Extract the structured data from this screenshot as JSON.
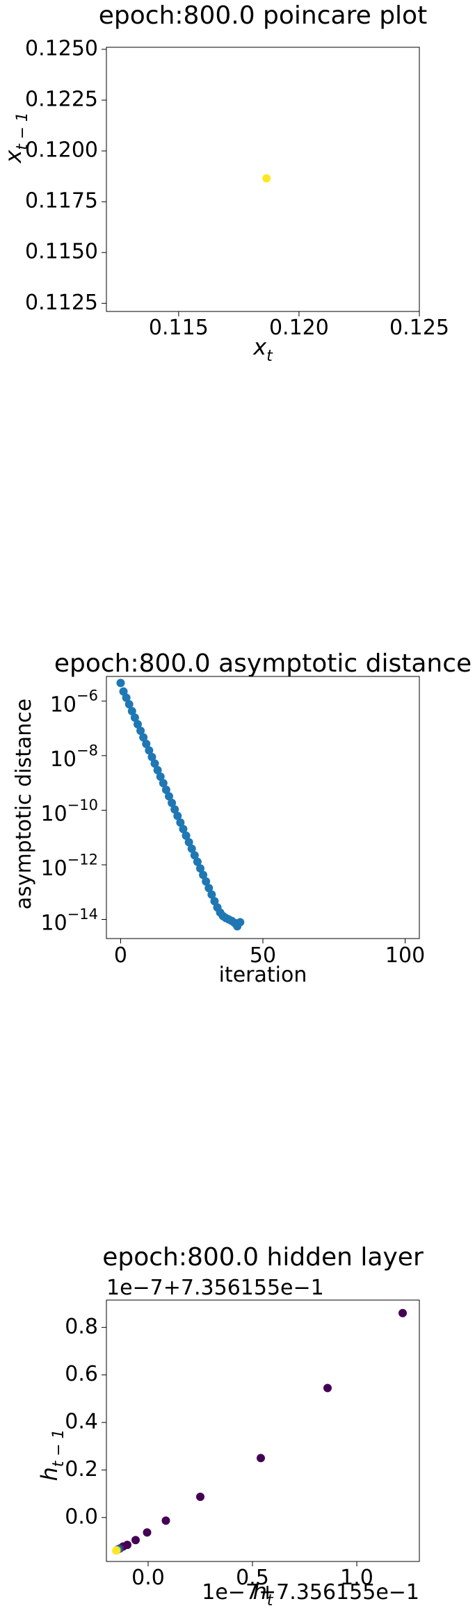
{
  "chart_data": [
    {
      "type": "scatter",
      "title": "epoch:800.0 poincare plot",
      "xlabel": {
        "main": "x",
        "sub": "t"
      },
      "ylabel": {
        "main": "x",
        "sub": "t − 1"
      },
      "xlim": [
        0.112,
        0.125
      ],
      "ylim": [
        0.1121,
        0.1251
      ],
      "x_ticks": [
        0.115,
        0.12,
        0.125
      ],
      "x_tick_labels": [
        "0.115",
        "0.120",
        "0.125"
      ],
      "y_ticks": [
        0.1125,
        0.115,
        0.1175,
        0.12,
        0.1225,
        0.125
      ],
      "y_tick_labels": [
        "0.1125",
        "0.1150",
        "0.1175",
        "0.1200",
        "0.1225",
        "0.1250"
      ],
      "points": [
        {
          "x": 0.11865,
          "y": 0.11865,
          "color": "#fde725"
        }
      ]
    },
    {
      "type": "scatter",
      "title": "epoch:800.0 asymptotic distance",
      "xlabel": "iteration",
      "ylabel": "asymptotic distance",
      "yscale": "log",
      "xlim": [
        -5,
        105
      ],
      "ylim_log10": [
        -14.7,
        -5.1
      ],
      "x_ticks": [
        0,
        50,
        100
      ],
      "x_tick_labels": [
        "0",
        "50",
        "100"
      ],
      "y_ticks_log10": [
        -6,
        -8,
        -10,
        -12,
        -14
      ],
      "y_tick_labels": [
        {
          "base": "10",
          "exp": "−6"
        },
        {
          "base": "10",
          "exp": "−8"
        },
        {
          "base": "10",
          "exp": "−10"
        },
        {
          "base": "10",
          "exp": "−12"
        },
        {
          "base": "10",
          "exp": "−14"
        }
      ],
      "color": "#1f77b4",
      "x": [
        0,
        1,
        2,
        3,
        4,
        5,
        6,
        7,
        8,
        9,
        10,
        11,
        12,
        13,
        14,
        15,
        16,
        17,
        18,
        19,
        20,
        21,
        22,
        23,
        24,
        25,
        26,
        27,
        28,
        29,
        30,
        31,
        32,
        33,
        34,
        35,
        36,
        37,
        38,
        39,
        40,
        41,
        42
      ],
      "log10_y": [
        -5.34,
        -5.65,
        -5.88,
        -6.12,
        -6.37,
        -6.61,
        -6.85,
        -7.09,
        -7.33,
        -7.57,
        -7.81,
        -8.05,
        -8.29,
        -8.53,
        -8.77,
        -9.01,
        -9.25,
        -9.49,
        -9.73,
        -9.97,
        -10.21,
        -10.45,
        -10.69,
        -10.93,
        -11.17,
        -11.41,
        -11.65,
        -11.89,
        -12.13,
        -12.37,
        -12.61,
        -12.85,
        -13.09,
        -13.33,
        -13.56,
        -13.75,
        -13.88,
        -13.95,
        -14.0,
        -14.05,
        -14.12,
        -14.25,
        -14.1
      ]
    },
    {
      "type": "scatter",
      "title": "epoch:800.0 hidden layer",
      "xlabel": {
        "main": "h",
        "sub": "t"
      },
      "ylabel": {
        "main": "h",
        "sub": "t − 1"
      },
      "x_offset_label": "1e−7+7.356155e−1",
      "y_offset_label": "1e−7+7.356155e−1",
      "xlim": [
        -0.2,
        1.3
      ],
      "ylim": [
        -0.185,
        0.915
      ],
      "x_ticks": [
        0.0,
        0.5,
        1.0
      ],
      "x_tick_labels": [
        "0.0",
        "0.5",
        "1.0"
      ],
      "y_ticks": [
        0.0,
        0.2,
        0.4,
        0.6,
        0.8
      ],
      "y_tick_labels": [
        "0.0",
        "0.2",
        "0.4",
        "0.6",
        "0.8"
      ],
      "points": [
        {
          "x": 1.22,
          "y": 0.86,
          "color": "#440154"
        },
        {
          "x": 0.86,
          "y": 0.545,
          "color": "#440154"
        },
        {
          "x": 0.54,
          "y": 0.25,
          "color": "#440154"
        },
        {
          "x": 0.25,
          "y": 0.087,
          "color": "#440154"
        },
        {
          "x": 0.085,
          "y": -0.013,
          "color": "#440154"
        },
        {
          "x": -0.005,
          "y": -0.063,
          "color": "#440154"
        },
        {
          "x": -0.06,
          "y": -0.095,
          "color": "#440154"
        },
        {
          "x": -0.1,
          "y": -0.115,
          "color": "#440154"
        },
        {
          "x": -0.12,
          "y": -0.122,
          "color": "#440154"
        },
        {
          "x": -0.135,
          "y": -0.13,
          "color": "#482878"
        },
        {
          "x": -0.143,
          "y": -0.133,
          "color": "#3b528b"
        },
        {
          "x": -0.148,
          "y": -0.136,
          "color": "#21918c"
        },
        {
          "x": -0.151,
          "y": -0.138,
          "color": "#5ec962"
        },
        {
          "x": -0.153,
          "y": -0.139,
          "color": "#fde725"
        }
      ]
    }
  ]
}
